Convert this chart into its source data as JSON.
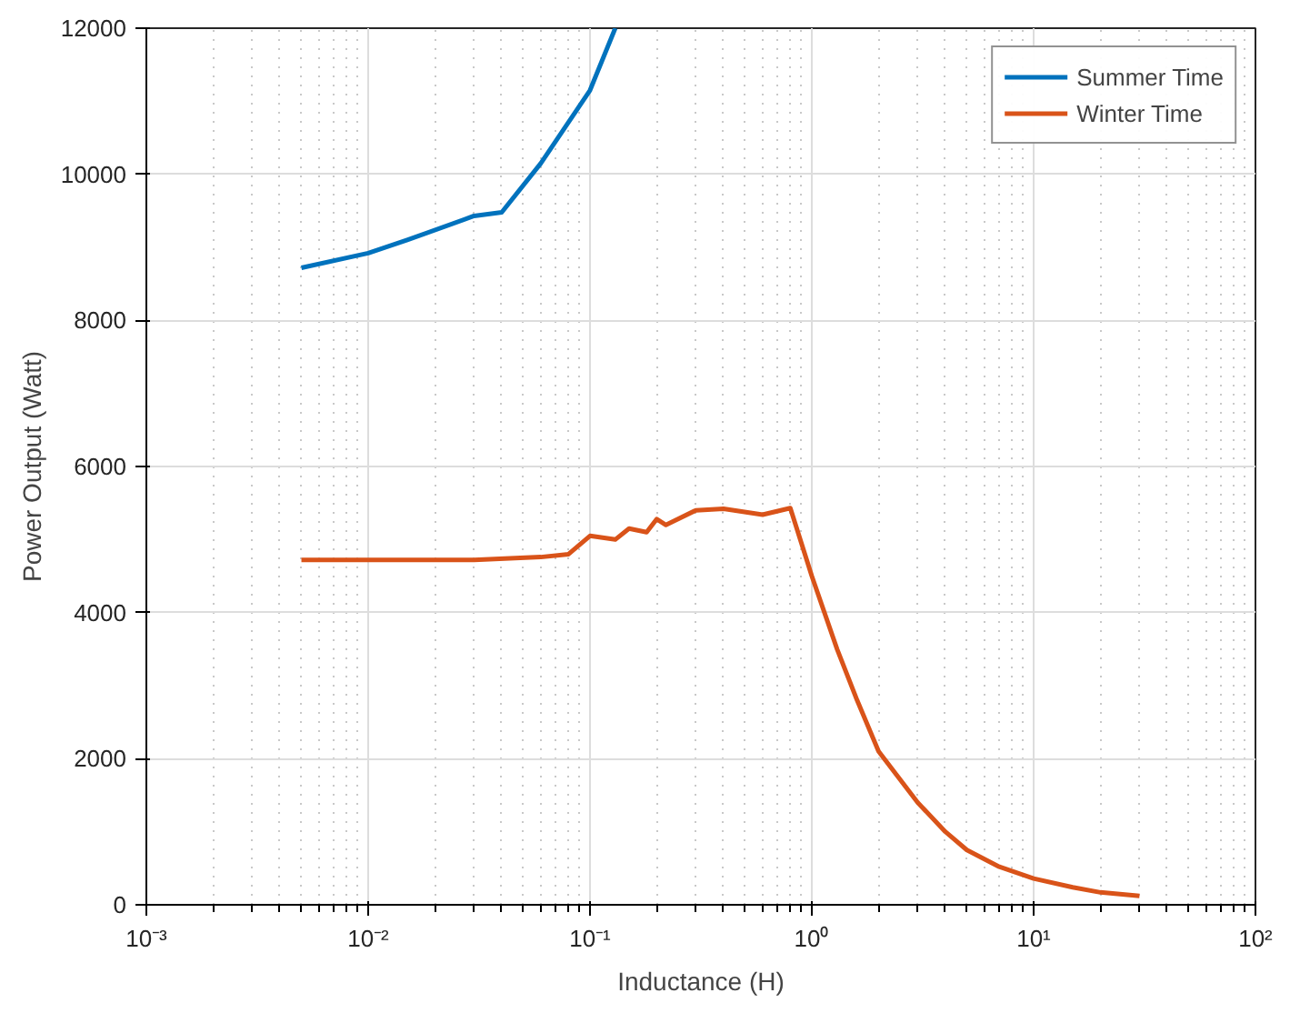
{
  "chart_data": {
    "type": "line",
    "xlabel": "Inductance (H)",
    "ylabel": "Power Output (Watt)",
    "log": "x",
    "grid": true,
    "legend": "top right",
    "xlim": [
      0.001,
      100
    ],
    "xticks": [
      {
        "value": 0.001,
        "label": "10⁻³"
      },
      {
        "value": 0.01,
        "label": "10⁻²"
      },
      {
        "value": 0.1,
        "label": "10⁻¹"
      },
      {
        "value": 1,
        "label": "10⁰"
      },
      {
        "value": 10,
        "label": "10¹"
      },
      {
        "value": 100,
        "label": "10²"
      }
    ],
    "ylim": [
      0,
      12000
    ],
    "yticks": [
      0,
      2000,
      4000,
      6000,
      8000,
      10000,
      12000
    ],
    "series": [
      {
        "name": "Summer Time",
        "color": "#0072bd",
        "x": [
          0.005,
          0.01,
          0.015,
          0.03,
          0.04,
          0.06,
          0.1,
          0.13
        ],
        "values": [
          8720,
          8920,
          9100,
          9430,
          9480,
          10150,
          11150,
          12000
        ]
      },
      {
        "name": "Winter Time",
        "color": "#d95319",
        "x": [
          0.005,
          0.03,
          0.06,
          0.08,
          0.1,
          0.13,
          0.15,
          0.18,
          0.2,
          0.22,
          0.3,
          0.4,
          0.6,
          0.8,
          1.0,
          1.3,
          1.6,
          2,
          3,
          4,
          5,
          7,
          10,
          15,
          20,
          30
        ],
        "values": [
          4720,
          4720,
          4760,
          4800,
          5050,
          5000,
          5150,
          5100,
          5280,
          5200,
          5400,
          5420,
          5340,
          5430,
          4500,
          3500,
          2800,
          2100,
          1400,
          1000,
          750,
          520,
          360,
          240,
          170,
          120
        ]
      }
    ]
  }
}
